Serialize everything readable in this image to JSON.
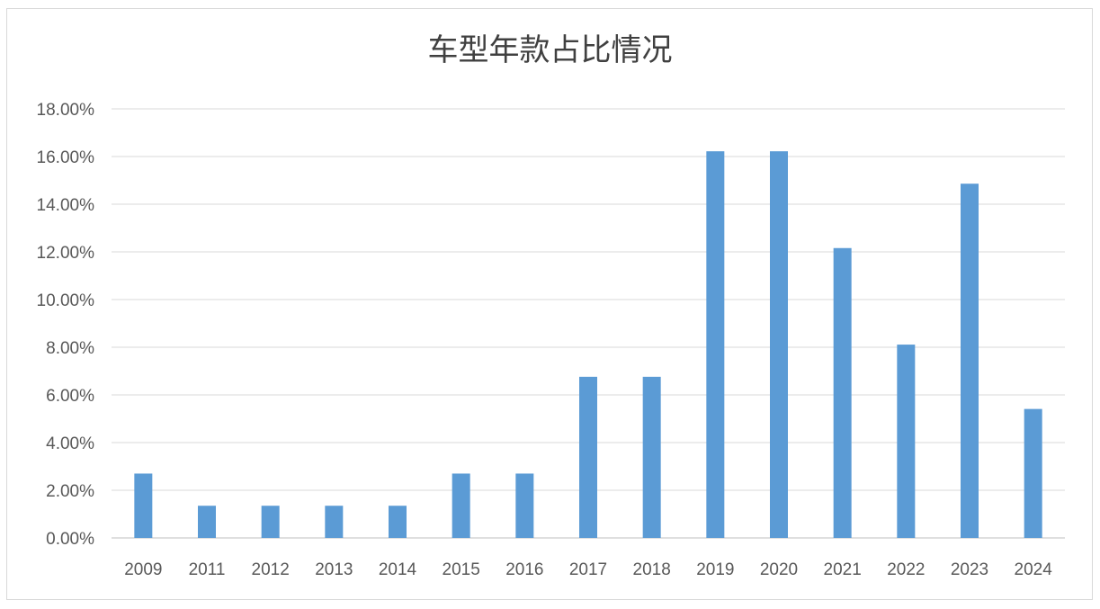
{
  "chart_data": {
    "type": "bar",
    "title": "车型年款占比情况",
    "xlabel": "",
    "ylabel": "",
    "categories": [
      "2009",
      "2011",
      "2012",
      "2013",
      "2014",
      "2015",
      "2016",
      "2017",
      "2018",
      "2019",
      "2020",
      "2021",
      "2022",
      "2023",
      "2024"
    ],
    "values": [
      2.7,
      1.35,
      1.35,
      1.35,
      1.35,
      2.7,
      2.7,
      6.76,
      6.76,
      16.22,
      16.22,
      12.16,
      8.11,
      14.86,
      5.41
    ],
    "ylim": [
      0,
      18
    ],
    "yticks": [
      "0.00%",
      "2.00%",
      "4.00%",
      "6.00%",
      "8.00%",
      "10.00%",
      "12.00%",
      "14.00%",
      "16.00%",
      "18.00%"
    ],
    "value_format": "percent",
    "grid": true,
    "legend": "none",
    "colors": {
      "bar": "#5b9bd5",
      "grid": "#d9d9d9",
      "axis": "#bfbfbf",
      "text": "#595959",
      "title": "#404040"
    }
  }
}
